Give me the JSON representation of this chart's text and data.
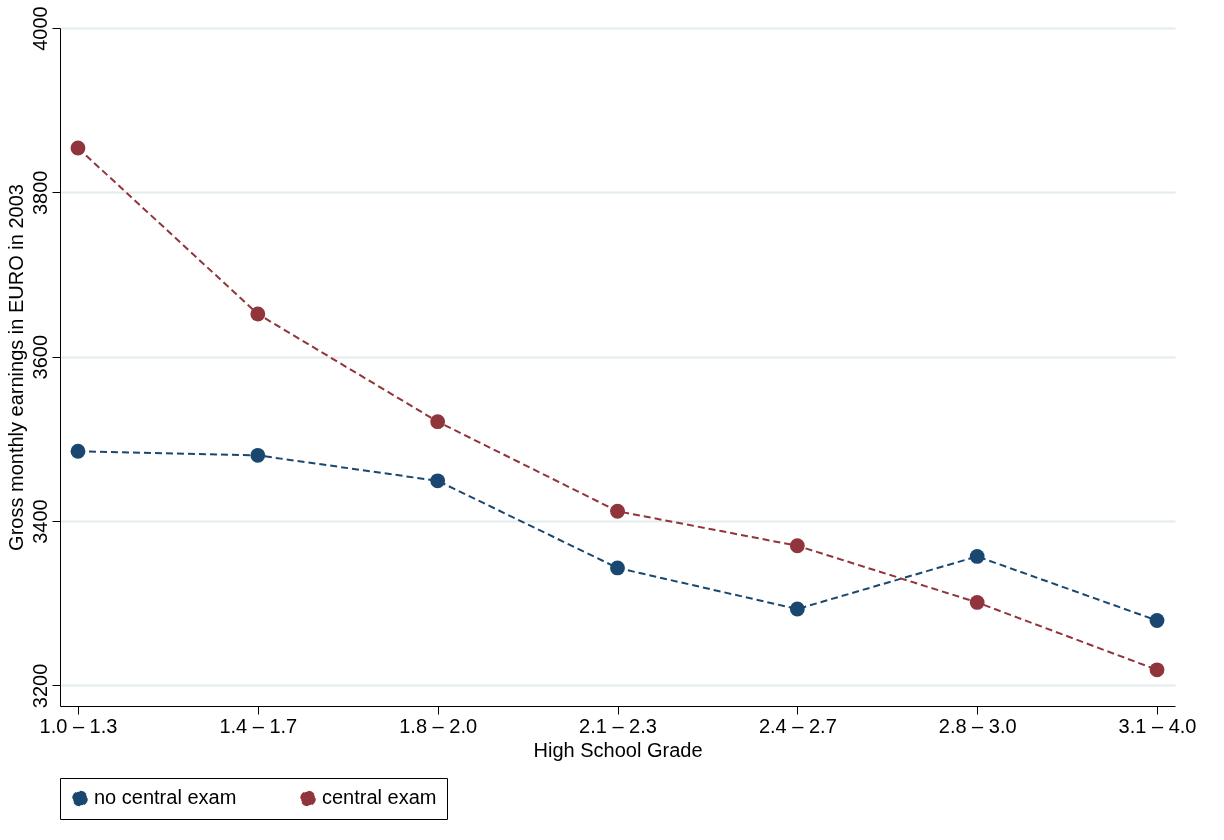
{
  "chart_data": {
    "type": "line",
    "xlabel": "High School Grade",
    "ylabel": "Gross monthly earnings in EURO in 2003",
    "categories": [
      "1.0 – 1.3",
      "1.4 – 1.7",
      "1.8 – 2.0",
      "2.1 – 2.3",
      "2.4 – 2.7",
      "2.8 – 3.0",
      "3.1 – 4.0"
    ],
    "series": [
      {
        "name": "no central exam",
        "color": "#1a476f",
        "line_style": "dashed",
        "values": [
          3485,
          3480,
          3449,
          3343,
          3293,
          3357,
          3279
        ]
      },
      {
        "name": "central exam",
        "color": "#90353b",
        "line_style": "dashed",
        "values": [
          3854,
          3652,
          3521,
          3412,
          3370,
          3301,
          3219
        ]
      }
    ],
    "ylim": [
      3175,
      4000
    ],
    "yticks": [
      3200,
      3400,
      3600,
      3800,
      4000
    ],
    "grid": "y",
    "legend": "bottom",
    "marker": "circle"
  }
}
